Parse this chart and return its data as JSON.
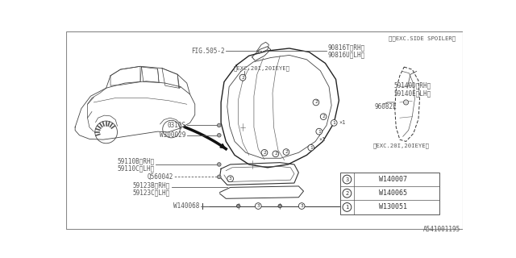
{
  "bg_color": "#ffffff",
  "tc": "#555555",
  "lc": "#444444",
  "fig_ref": "A541001195",
  "top_note": "※〈EXC.SIDE SPOILER〉",
  "fig505": "FIG.505-2",
  "part1a": "90816T〈RH〉",
  "part1b": "90816U〈LH〉",
  "exc_note1": "〈EXC.20I,20IEYE〉",
  "part2a": "59140D〈RH〉",
  "part2b": "59140E〈LH〉",
  "part3": "96082E",
  "exc_note2": "〈EXC.20I,20IEYE〉",
  "part4": "0310S",
  "part5": "W300029",
  "part6a": "59110B〈RH〉",
  "part6b": "59110C〈LH〉",
  "part7": "Q560042",
  "part8a": "59123B〈RH〉",
  "part8b": "59123C〈LH〉",
  "part9": "W140068",
  "star1": "×1",
  "legend": [
    {
      "num": "1",
      "code": "W130051"
    },
    {
      "num": "2",
      "code": "W140065"
    },
    {
      "num": "3",
      "code": "W140007"
    }
  ]
}
